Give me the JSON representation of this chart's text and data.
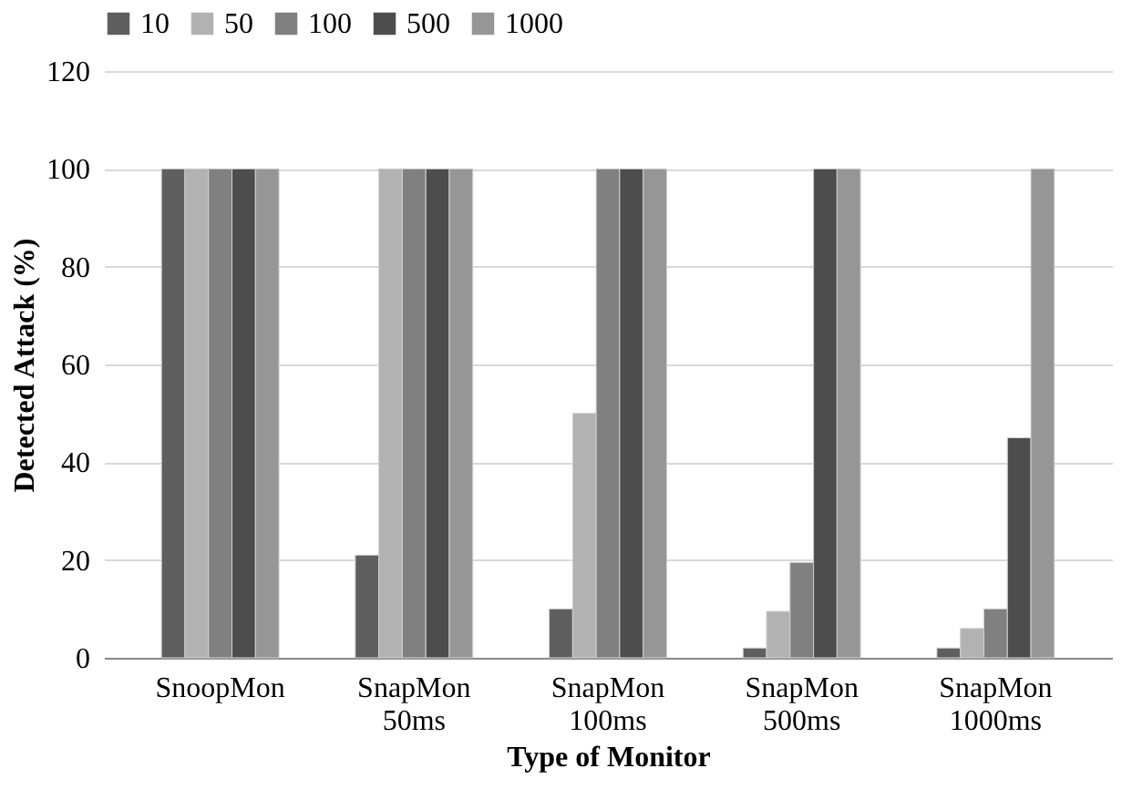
{
  "chart_data": {
    "type": "bar",
    "xlabel": "Type of Monitor",
    "ylabel": "Detected Attack (%)",
    "categories": [
      "SnoopMon",
      "SnapMon 50ms",
      "SnapMon 100ms",
      "SnapMon 500ms",
      "SnapMon 1000ms"
    ],
    "series": [
      {
        "name": "10",
        "color": "#5f5f5f",
        "values": [
          100,
          21,
          10,
          2,
          2
        ]
      },
      {
        "name": "50",
        "color": "#b2b2b2",
        "values": [
          100,
          100,
          50,
          9.5,
          6
        ]
      },
      {
        "name": "100",
        "color": "#808080",
        "values": [
          100,
          100,
          100,
          19.5,
          10
        ]
      },
      {
        "name": "500",
        "color": "#4d4d4d",
        "values": [
          100,
          100,
          100,
          100,
          45
        ]
      },
      {
        "name": "1000",
        "color": "#969696",
        "values": [
          100,
          100,
          100,
          100,
          100
        ]
      }
    ],
    "ylim": [
      0,
      120
    ],
    "yticks": [
      0,
      20,
      40,
      60,
      80,
      100,
      120
    ],
    "grid": "y",
    "legend": "top"
  }
}
